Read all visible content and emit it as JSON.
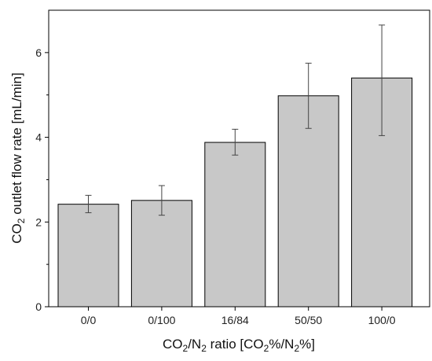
{
  "chart_data": {
    "type": "bar",
    "categories": [
      "0/0",
      "0/100",
      "16/84",
      "50/50",
      "100/0"
    ],
    "values": [
      2.42,
      2.51,
      3.88,
      4.98,
      5.4
    ],
    "error_low": [
      2.22,
      2.16,
      3.58,
      4.21,
      4.04
    ],
    "error_high": [
      2.63,
      2.86,
      4.19,
      5.75,
      6.65
    ],
    "xlabel": {
      "pre": "CO",
      "sub1": "2",
      "mid": "/N",
      "sub2": "2",
      "post": " ratio [CO%/N%]",
      "post_parts": {
        "a": " ratio [CO",
        "sub3": "2",
        "b": "%/N",
        "sub4": "2",
        "c": "%]"
      }
    },
    "ylabel": {
      "pre": "CO",
      "sub": "2",
      "post": " outlet flow rate [mL/min]"
    },
    "yticks": [
      0,
      2,
      4,
      6
    ],
    "ylim": [
      0,
      7
    ],
    "bar_color": "#c8c8c8",
    "bar_stroke": "#000000",
    "grid": false,
    "legend": "none"
  }
}
